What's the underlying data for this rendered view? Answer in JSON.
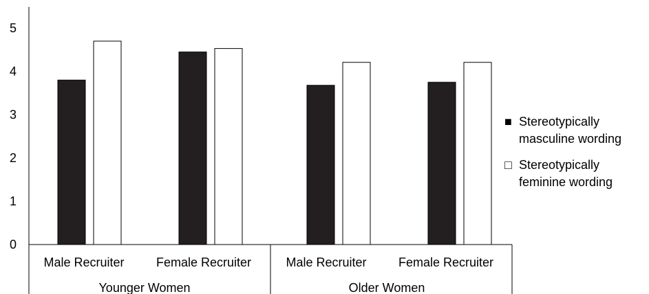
{
  "chart_data": {
    "type": "bar",
    "title": "",
    "xlabel": "",
    "ylabel": "",
    "ylim": [
      0,
      5
    ],
    "yticks": [
      "0",
      "1",
      "2",
      "3",
      "4",
      "5"
    ],
    "grid": false,
    "legend_position": "right",
    "groups": [
      {
        "label": "Younger Women",
        "categories": [
          "Male Recruiter",
          "Female Recruiter"
        ]
      },
      {
        "label": "Older Women",
        "categories": [
          "Male Recruiter",
          "Female Recruiter"
        ]
      }
    ],
    "categories": [
      "Male Recruiter",
      "Female Recruiter",
      "Male Recruiter",
      "Female Recruiter"
    ],
    "series": [
      {
        "name": "Stereotypically masculine wording",
        "legend_lines": [
          "Stereotypically",
          "masculine wording"
        ],
        "legend_symbol": "■",
        "color": "#231f20",
        "values": [
          3.8,
          4.45,
          3.68,
          3.75
        ]
      },
      {
        "name": "Stereotypically feminine wording",
        "legend_lines": [
          "Stereotypically",
          "feminine wording"
        ],
        "legend_symbol": "□",
        "color": "#ffffff",
        "values": [
          4.7,
          4.53,
          4.21,
          4.21
        ]
      }
    ]
  }
}
